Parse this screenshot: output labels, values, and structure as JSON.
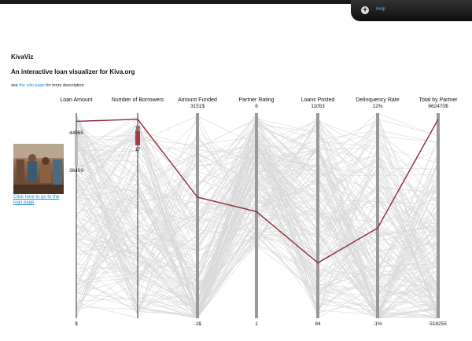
{
  "help": {
    "label": "Help",
    "plus_icon": "plus-circle-icon"
  },
  "header": {
    "title": "KivaViz",
    "subtitle": "An interactive loan visualizer for Kiva.org",
    "desc_prefix": "see",
    "desc_link": "the wiki page",
    "desc_suffix": "for more description"
  },
  "loan": {
    "thumbnail_alt": "loan photo",
    "link_text": "Click here to go to the loan page"
  },
  "chart_data": {
    "type": "parallel-coordinates",
    "axes": [
      {
        "name": "Loan Amount",
        "top_label": "",
        "bottom_label": "$",
        "brush_top": "44065",
        "brush_bottom": "36409"
      },
      {
        "name": "Number of Borrowers",
        "top_label": "",
        "bottom_label": "",
        "brush_top": "18",
        "brush_bottom": "17"
      },
      {
        "name": "Amount Funded",
        "top_label": "3151$",
        "bottom_label": "-1$",
        "brush_top": "",
        "brush_bottom": ""
      },
      {
        "name": "Partner Rating",
        "top_label": "6",
        "bottom_label": "1",
        "brush_top": "",
        "brush_bottom": ""
      },
      {
        "name": "Loans Posted",
        "top_label": "11053",
        "bottom_label": "84",
        "brush_top": "",
        "brush_bottom": ""
      },
      {
        "name": "Delinquency Rate",
        "top_label": "12%",
        "bottom_label": "-1%",
        "brush_top": "",
        "brush_bottom": ""
      },
      {
        "name": "Total by Partner",
        "top_label": "662470$",
        "bottom_label": "518255",
        "brush_top": "",
        "brush_bottom": ""
      }
    ],
    "highlighted": [
      0.96,
      0.97,
      0.59,
      0.52,
      0.27,
      0.44,
      0.97
    ],
    "colors": {
      "background_lines": "#d9d9d9",
      "highlight": "#8e2a36",
      "axis": "#888888",
      "brush": "#a33a44"
    }
  }
}
